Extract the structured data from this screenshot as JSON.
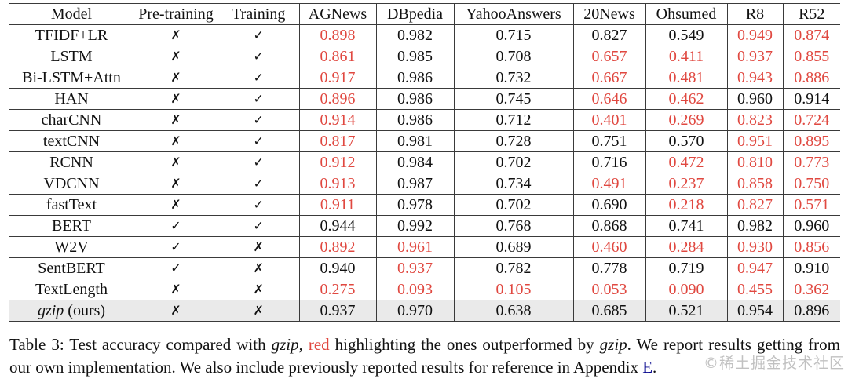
{
  "table": {
    "columns": [
      "Model",
      "Pre-training",
      "Training",
      "AGNews",
      "DBpedia",
      "YahooAnswers",
      "20News",
      "Ohsumed",
      "R8",
      "R52"
    ],
    "rows": [
      {
        "model": "TFIDF+LR",
        "model_suffix": "",
        "model_italic": false,
        "pretraining": "✗",
        "training": "✓",
        "values": [
          "0.898",
          "0.982",
          "0.715",
          "0.827",
          "0.549",
          "0.949",
          "0.874"
        ],
        "red": [
          true,
          false,
          false,
          false,
          false,
          true,
          true
        ],
        "highlight": false
      },
      {
        "model": "LSTM",
        "model_suffix": "",
        "model_italic": false,
        "pretraining": "✗",
        "training": "✓",
        "values": [
          "0.861",
          "0.985",
          "0.708",
          "0.657",
          "0.411",
          "0.937",
          "0.855"
        ],
        "red": [
          true,
          false,
          false,
          true,
          true,
          true,
          true
        ],
        "highlight": false
      },
      {
        "model": "Bi-LSTM+Attn",
        "model_suffix": "",
        "model_italic": false,
        "pretraining": "✗",
        "training": "✓",
        "values": [
          "0.917",
          "0.986",
          "0.732",
          "0.667",
          "0.481",
          "0.943",
          "0.886"
        ],
        "red": [
          true,
          false,
          false,
          true,
          true,
          true,
          true
        ],
        "highlight": false
      },
      {
        "model": "HAN",
        "model_suffix": "",
        "model_italic": false,
        "pretraining": "✗",
        "training": "✓",
        "values": [
          "0.896",
          "0.986",
          "0.745",
          "0.646",
          "0.462",
          "0.960",
          "0.914"
        ],
        "red": [
          true,
          false,
          false,
          true,
          true,
          false,
          false
        ],
        "highlight": false
      },
      {
        "model": "charCNN",
        "model_suffix": "",
        "model_italic": false,
        "pretraining": "✗",
        "training": "✓",
        "values": [
          "0.914",
          "0.986",
          "0.712",
          "0.401",
          "0.269",
          "0.823",
          "0.724"
        ],
        "red": [
          true,
          false,
          false,
          true,
          true,
          true,
          true
        ],
        "highlight": false
      },
      {
        "model": "textCNN",
        "model_suffix": "",
        "model_italic": false,
        "pretraining": "✗",
        "training": "✓",
        "values": [
          "0.817",
          "0.981",
          "0.728",
          "0.751",
          "0.570",
          "0.951",
          "0.895"
        ],
        "red": [
          true,
          false,
          false,
          false,
          false,
          true,
          true
        ],
        "highlight": false
      },
      {
        "model": "RCNN",
        "model_suffix": "",
        "model_italic": false,
        "pretraining": "✗",
        "training": "✓",
        "values": [
          "0.912",
          "0.984",
          "0.702",
          "0.716",
          "0.472",
          "0.810",
          "0.773"
        ],
        "red": [
          true,
          false,
          false,
          false,
          true,
          true,
          true
        ],
        "highlight": false
      },
      {
        "model": "VDCNN",
        "model_suffix": "",
        "model_italic": false,
        "pretraining": "✗",
        "training": "✓",
        "values": [
          "0.913",
          "0.987",
          "0.734",
          "0.491",
          "0.237",
          "0.858",
          "0.750"
        ],
        "red": [
          true,
          false,
          false,
          true,
          true,
          true,
          true
        ],
        "highlight": false
      },
      {
        "model": "fastText",
        "model_suffix": "",
        "model_italic": false,
        "pretraining": "✗",
        "training": "✓",
        "values": [
          "0.911",
          "0.978",
          "0.702",
          "0.690",
          "0.218",
          "0.827",
          "0.571"
        ],
        "red": [
          true,
          false,
          false,
          false,
          true,
          true,
          true
        ],
        "highlight": false
      },
      {
        "model": "BERT",
        "model_suffix": "",
        "model_italic": false,
        "pretraining": "✓",
        "training": "✓",
        "values": [
          "0.944",
          "0.992",
          "0.768",
          "0.868",
          "0.741",
          "0.982",
          "0.960"
        ],
        "red": [
          false,
          false,
          false,
          false,
          false,
          false,
          false
        ],
        "highlight": false
      },
      {
        "model": "W2V",
        "model_suffix": "",
        "model_italic": false,
        "pretraining": "✓",
        "training": "✗",
        "values": [
          "0.892",
          "0.961",
          "0.689",
          "0.460",
          "0.284",
          "0.930",
          "0.856"
        ],
        "red": [
          true,
          true,
          false,
          true,
          true,
          true,
          true
        ],
        "highlight": false
      },
      {
        "model": "SentBERT",
        "model_suffix": "",
        "model_italic": false,
        "pretraining": "✓",
        "training": "✗",
        "values": [
          "0.940",
          "0.937",
          "0.782",
          "0.778",
          "0.719",
          "0.947",
          "0.910"
        ],
        "red": [
          false,
          true,
          false,
          false,
          false,
          true,
          false
        ],
        "highlight": false
      },
      {
        "model": "TextLength",
        "model_suffix": "",
        "model_italic": false,
        "pretraining": "✗",
        "training": "✗",
        "values": [
          "0.275",
          "0.093",
          "0.105",
          "0.053",
          "0.090",
          "0.455",
          "0.362"
        ],
        "red": [
          true,
          true,
          true,
          true,
          true,
          true,
          true
        ],
        "highlight": false
      },
      {
        "model": "gzip",
        "model_suffix": " (ours)",
        "model_italic": true,
        "pretraining": "✗",
        "training": "✗",
        "values": [
          "0.937",
          "0.970",
          "0.638",
          "0.685",
          "0.521",
          "0.954",
          "0.896"
        ],
        "red": [
          false,
          false,
          false,
          false,
          false,
          false,
          false
        ],
        "highlight": true
      }
    ]
  },
  "caption": {
    "segments": [
      {
        "text": "Table 3: Test accuracy compared with ",
        "style": ""
      },
      {
        "text": "gzip",
        "style": "italic"
      },
      {
        "text": ", ",
        "style": ""
      },
      {
        "text": "red",
        "style": "red"
      },
      {
        "text": " highlighting the ones outperformed by ",
        "style": ""
      },
      {
        "text": "gzip",
        "style": "italic"
      },
      {
        "text": ". We report results getting from our own implementation. We also include previously reported results for reference in Appendix ",
        "style": ""
      },
      {
        "text": "E",
        "style": "link"
      },
      {
        "text": ".",
        "style": ""
      }
    ]
  },
  "watermark": {
    "icon": "©",
    "text": "稀土掘金技术社区"
  },
  "colors": {
    "red_highlight": "#e04840",
    "appendix_link_blue": "#00008b",
    "gzip_row_background": "#eaeaea"
  }
}
